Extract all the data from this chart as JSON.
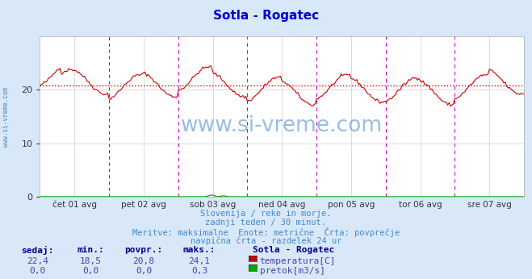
{
  "title": "Sotla - Rogatec",
  "title_color": "#0000cc",
  "bg_color": "#d8e8f8",
  "plot_bg_color": "#ffffff",
  "y_min": 0,
  "y_max": 30,
  "y_ticks": [
    0,
    10,
    20
  ],
  "x_labels": [
    "čet 01 avg",
    "pet 02 avg",
    "sob 03 avg",
    "ned 04 avg",
    "pon 05 avg",
    "tor 06 avg",
    "sre 07 avg"
  ],
  "n_points": 337,
  "avg_temp": 20.8,
  "flow_max": 0.3,
  "temp_color": "#cc0000",
  "flow_color": "#00aa00",
  "vline_color": "#cc00cc",
  "vline_dark_color": "#444444",
  "footer_line1": "Slovenija / reke in morje.",
  "footer_line2": "zadnji teden / 30 minut.",
  "footer_line3": "Meritve: maksimalne  Enote: metrične  Črta: povprečje",
  "footer_line4": "navpična črta - razdelek 24 ur",
  "footer_color": "#4488cc",
  "table_headers": [
    "sedaj:",
    "min.:",
    "povpr.:",
    "maks.:"
  ],
  "table_header_color": "#000088",
  "table_value_color": "#4444aa",
  "table_values_temp": [
    "22,4",
    "18,5",
    "20,8",
    "24,1"
  ],
  "table_values_flow": [
    "0,0",
    "0,0",
    "0,0",
    "0,3"
  ],
  "legend_title": "Sotla - Rogatec",
  "legend_temp": "temperatura[C]",
  "legend_flow": "pretok[m3/s]",
  "watermark": "www.si-vreme.com",
  "watermark_color": "#4488cc",
  "left_label": "www.si-vreme.com",
  "left_label_color": "#4488cc"
}
